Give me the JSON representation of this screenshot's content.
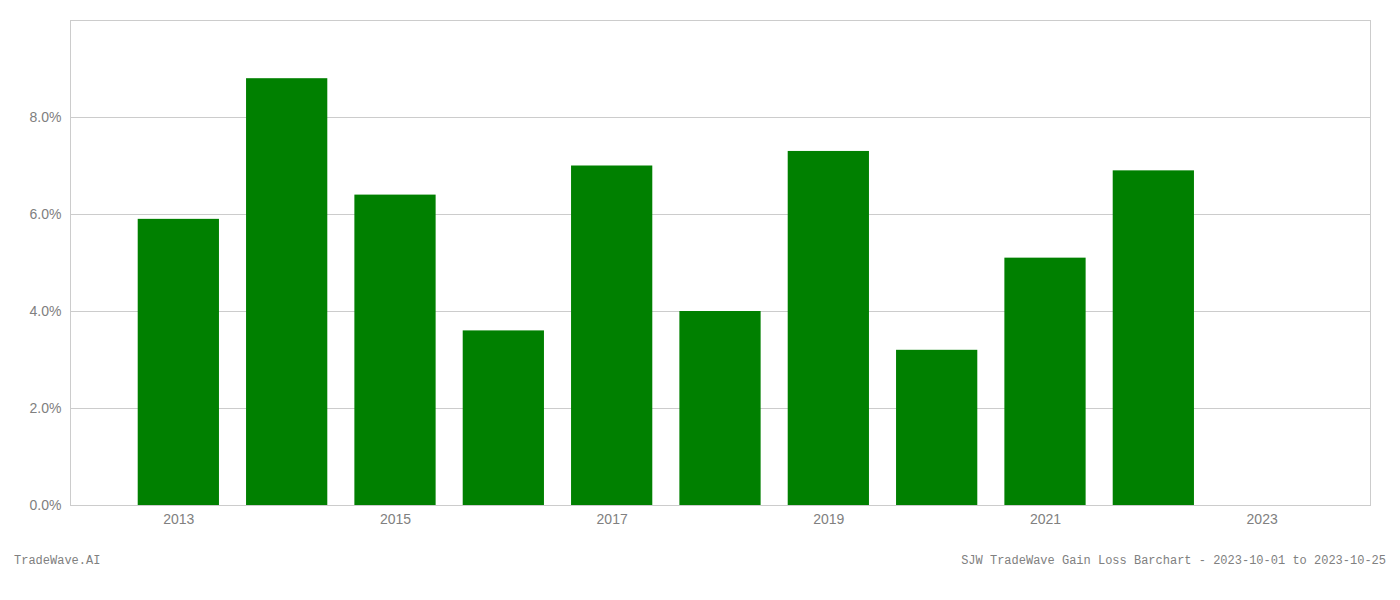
{
  "chart_data": {
    "type": "bar",
    "x": [
      2013,
      2014,
      2015,
      2016,
      2017,
      2018,
      2019,
      2020,
      2021,
      2022,
      2023
    ],
    "values": [
      0.059,
      0.088,
      0.064,
      0.036,
      0.07,
      0.04,
      0.073,
      0.032,
      0.051,
      0.069,
      0.0
    ],
    "color": "#008000",
    "xlim": [
      2012,
      2024
    ],
    "xticks": [
      2013,
      2015,
      2017,
      2019,
      2021,
      2023
    ],
    "ylim": [
      0,
      0.1
    ],
    "yticks": [
      {
        "value": 0.0,
        "label": "0.0%"
      },
      {
        "value": 0.02,
        "label": "2.0%"
      },
      {
        "value": 0.04,
        "label": "4.0%"
      },
      {
        "value": 0.06,
        "label": "6.0%"
      },
      {
        "value": 0.08,
        "label": "8.0%"
      }
    ],
    "grid": true,
    "annotations": [
      "TradeWave.AI",
      "SJW TradeWave Gain Loss Barchart - 2023-10-01 to 2023-10-25"
    ]
  }
}
